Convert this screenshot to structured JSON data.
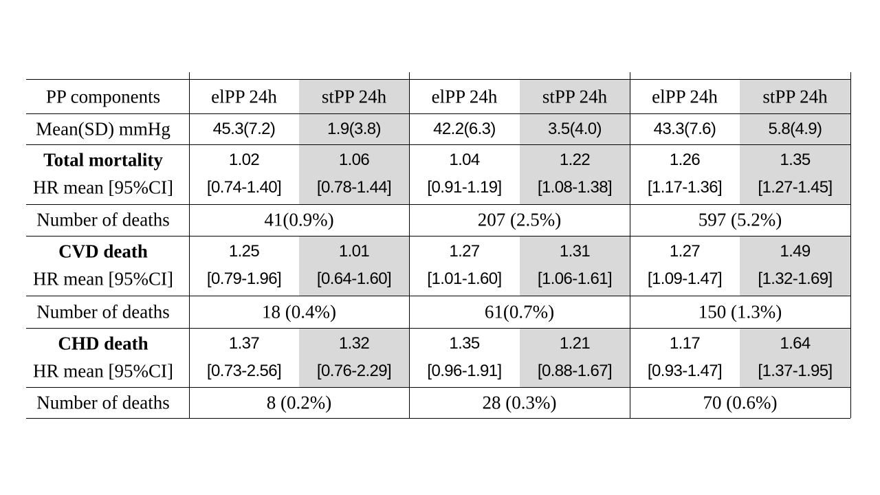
{
  "table": {
    "header": [
      "PP components",
      "elPP 24h",
      "stPP 24h",
      "elPP 24h",
      "stPP 24h",
      "elPP 24h",
      "stPP 24h"
    ],
    "mean_row": {
      "label": "Mean(SD) mmHg",
      "values": [
        "45.3(7.2)",
        "1.9(3.8)",
        "42.2(6.3)",
        "3.5(4.0)",
        "43.3(7.6)",
        "5.8(4.9)"
      ]
    },
    "outcomes": [
      {
        "name": "Total mortality",
        "sublabel": "HR mean [95%CI]",
        "hr": [
          "1.02",
          "1.06",
          "1.04",
          "1.22",
          "1.26",
          "1.35"
        ],
        "ci": [
          "[0.74-1.40]",
          "[0.78-1.44]",
          "[0.91-1.19]",
          "[1.08-1.38]",
          "[1.17-1.36]",
          "[1.27-1.45]"
        ],
        "deaths_label": "Number of deaths",
        "deaths": [
          "41(0.9%)",
          "207 (2.5%)",
          "597 (5.2%)"
        ]
      },
      {
        "name": "CVD death",
        "sublabel": "HR mean [95%CI]",
        "hr": [
          "1.25",
          "1.01",
          "1.27",
          "1.31",
          "1.27",
          "1.49"
        ],
        "ci": [
          "[0.79-1.96]",
          "[0.64-1.60]",
          "[1.01-1.60]",
          "[1.06-1.61]",
          "[1.09-1.47]",
          "[1.32-1.69]"
        ],
        "deaths_label": "Number of deaths",
        "deaths": [
          "18 (0.4%)",
          "61(0.7%)",
          "150 (1.3%)"
        ]
      },
      {
        "name": "CHD death",
        "sublabel": "HR mean [95%CI]",
        "hr": [
          "1.37",
          "1.32",
          "1.35",
          "1.21",
          "1.17",
          "1.64"
        ],
        "ci": [
          "[0.73-2.56]",
          "[0.76-2.29]",
          "[0.96-1.91]",
          "[0.88-1.67]",
          "[0.93-1.47]",
          "[1.37-1.95]"
        ],
        "deaths_label": "Number of deaths",
        "deaths": [
          "8 (0.2%)",
          "28 (0.3%)",
          "70 (0.6%)"
        ]
      }
    ]
  }
}
